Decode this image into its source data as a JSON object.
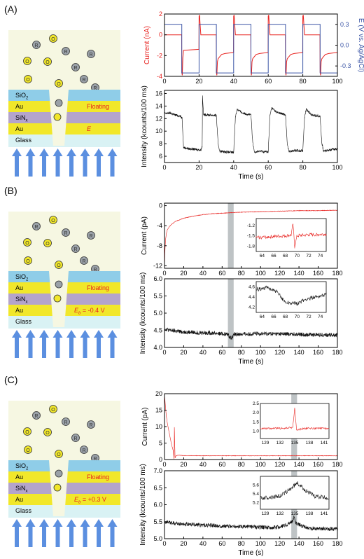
{
  "panels": [
    {
      "label": "(A)",
      "schematic": {
        "layers": [
          "SiO2",
          "Au",
          "SiNx",
          "Au",
          "Glass"
        ],
        "top_electrode_label": "Floating",
        "bottom_electrode_label": "E",
        "molecule_labels": [
          "O",
          "R"
        ]
      }
    },
    {
      "label": "(B)",
      "schematic": {
        "layers": [
          "SiO2",
          "Au",
          "SiNx",
          "Au",
          "Glass"
        ],
        "top_electrode_label": "Floating",
        "bottom_electrode_label": "Eb = -0.4 V",
        "molecule_labels": [
          "O",
          "R"
        ]
      }
    },
    {
      "label": "(C)",
      "schematic": {
        "layers": [
          "SiO2",
          "Au",
          "SiNx",
          "Au",
          "Glass"
        ],
        "top_electrode_label": "Floating",
        "bottom_electrode_label": "Eb = +0.3 V",
        "molecule_labels": [
          "O",
          "R"
        ]
      }
    }
  ],
  "chart_data": [
    {
      "panel": "A",
      "type": "line",
      "xlim": [
        0,
        100
      ],
      "ylim": [
        -4,
        2
      ],
      "xticks": [
        0,
        20,
        40,
        60,
        80,
        100
      ],
      "yticks": [
        -4,
        -2,
        0,
        2
      ],
      "xlabel": "",
      "ylabel": "Current (nA)",
      "y2label": "E (V vs. Ag/AgCl)",
      "y2lim": [
        -0.45,
        0.45
      ],
      "y2ticks": [
        -0.3,
        0.0,
        0.3
      ],
      "series": [
        {
          "name": "Current",
          "color": "#e8221f",
          "axis": "left",
          "x": [
            0,
            9.9,
            10,
            10.3,
            10.6,
            11,
            19.9,
            20,
            20.3,
            20.6,
            21,
            29.9,
            30,
            30.3,
            30.6,
            31,
            32,
            33,
            35,
            39.9,
            40,
            40.3,
            40.6,
            41,
            49.9,
            50,
            50.3,
            50.6,
            51,
            52,
            53,
            55,
            59.9,
            60,
            60.3,
            60.6,
            61,
            69.9,
            70,
            70.3,
            70.6,
            71,
            72,
            73,
            75,
            79.9,
            80,
            80.3,
            80.6,
            81,
            89.9,
            90,
            90.3,
            90.6,
            91,
            92,
            93,
            95,
            99.9
          ],
          "y": [
            0,
            0,
            -3.6,
            -3.9,
            -2.2,
            -1.5,
            -1.4,
            1.8,
            1.9,
            1.0,
            0,
            0,
            -3.6,
            -3.9,
            -2.6,
            -2.3,
            -2.1,
            -1.9,
            -1.8,
            -1.7,
            1.8,
            1.9,
            1.0,
            0,
            0,
            -3.6,
            -3.9,
            -2.6,
            -2.3,
            -2.1,
            -1.9,
            -1.8,
            -1.7,
            1.8,
            1.9,
            1.0,
            0,
            0,
            -3.6,
            -3.9,
            -2.6,
            -2.3,
            -2.1,
            -1.9,
            -1.8,
            -1.7,
            1.8,
            1.9,
            1.0,
            0,
            0,
            -3.6,
            -3.9,
            -2.6,
            -2.3,
            -2.1,
            -1.9,
            -1.8,
            -1.7
          ]
        },
        {
          "name": "E",
          "color": "#3b55a6",
          "axis": "right",
          "x": [
            0,
            10,
            10,
            20,
            20,
            30,
            30,
            40,
            40,
            50,
            50,
            60,
            60,
            70,
            70,
            80,
            80,
            90,
            90,
            100
          ],
          "y": [
            0.3,
            0.3,
            -0.4,
            -0.4,
            0.3,
            0.3,
            -0.4,
            -0.4,
            0.3,
            0.3,
            -0.4,
            -0.4,
            0.3,
            0.3,
            -0.4,
            -0.4,
            0.3,
            0.3,
            -0.4,
            -0.4
          ]
        }
      ]
    },
    {
      "panel": "A",
      "type": "line",
      "xlim": [
        0,
        100
      ],
      "ylim": [
        5,
        16.5
      ],
      "xticks": [
        0,
        20,
        40,
        60,
        80,
        100
      ],
      "yticks": [
        6,
        8,
        10,
        12,
        14,
        16
      ],
      "xlabel": "Time (s)",
      "ylabel": "Intensity (kcounts/100 ms)",
      "series": [
        {
          "color": "#111111",
          "noise": 0.2,
          "x": [
            0,
            3,
            6,
            9,
            10.2,
            11,
            14,
            18,
            21,
            21.8,
            22,
            22.6,
            25,
            30,
            31,
            32,
            35,
            40,
            41,
            42,
            45,
            50,
            51,
            52,
            55,
            60,
            61,
            62,
            65,
            70,
            71,
            72,
            75,
            80,
            81,
            82,
            85,
            90,
            91,
            92,
            95,
            100
          ],
          "y": [
            12.8,
            12.9,
            12.6,
            12.4,
            12.1,
            7.4,
            7.2,
            7.1,
            7.0,
            7.6,
            15.6,
            12.6,
            12.6,
            12.5,
            8.0,
            6.8,
            6.7,
            6.6,
            12.2,
            13.5,
            12.9,
            12.6,
            8.2,
            6.7,
            6.8,
            6.7,
            12.5,
            13.7,
            13.0,
            12.6,
            7.9,
            6.8,
            6.9,
            6.9,
            12.2,
            13.5,
            12.6,
            12.4,
            8.1,
            6.8,
            7.0,
            7.2
          ]
        }
      ]
    },
    {
      "panel": "B",
      "type": "line",
      "xlim": [
        0,
        180
      ],
      "ylim": [
        -12.5,
        0.5
      ],
      "xticks": [
        0,
        20,
        40,
        60,
        80,
        100,
        120,
        140,
        160,
        180
      ],
      "yticks": [
        -12,
        -8,
        -4,
        0
      ],
      "xlabel": "",
      "ylabel": "Current (pA)",
      "highlight": [
        66,
        72
      ],
      "series": [
        {
          "color": "#e8221f",
          "noise": 0.05,
          "x": [
            0,
            0.5,
            1,
            2,
            3,
            5,
            8,
            12,
            20,
            30,
            40,
            50,
            60,
            80,
            100,
            120,
            140,
            160,
            180
          ],
          "y": [
            -12.3,
            -9.0,
            -7.0,
            -5.5,
            -4.8,
            -4.2,
            -3.6,
            -3.1,
            -2.5,
            -2.1,
            -1.8,
            -1.6,
            -1.5,
            -1.3,
            -1.2,
            -1.1,
            -1.0,
            -1.0,
            -0.9
          ]
        }
      ],
      "inset": {
        "xlim": [
          63,
          75
        ],
        "ylim": [
          -1.95,
          -1.0
        ],
        "xticks": [
          64,
          66,
          68,
          70,
          72,
          74
        ],
        "yticks": [
          -1.8,
          -1.5,
          -1.2
        ],
        "color": "#e8221f",
        "noise": 0.05,
        "x": [
          63,
          66,
          68,
          69,
          69.3,
          69.6,
          70,
          72,
          75
        ],
        "y": [
          -1.55,
          -1.52,
          -1.5,
          -1.48,
          -1.15,
          -1.82,
          -1.5,
          -1.47,
          -1.45
        ]
      }
    },
    {
      "panel": "B",
      "type": "line",
      "xlim": [
        0,
        180
      ],
      "ylim": [
        4.0,
        6.0
      ],
      "xticks": [
        0,
        20,
        40,
        60,
        80,
        100,
        120,
        140,
        160,
        180
      ],
      "yticks": [
        4.0,
        4.5,
        5.0,
        5.5,
        6.0
      ],
      "xlabel": "Time (s)",
      "ylabel": "Intensity (kcounts/100 ms)",
      "highlight": [
        66,
        72
      ],
      "series": [
        {
          "color": "#111111",
          "noise": 0.06,
          "x": [
            0,
            5,
            20,
            50,
            66,
            68,
            70,
            72,
            100,
            140,
            180
          ],
          "y": [
            4.55,
            4.5,
            4.45,
            4.42,
            4.38,
            4.3,
            4.28,
            4.38,
            4.4,
            4.38,
            4.36
          ]
        }
      ],
      "inset": {
        "xlim": [
          63,
          75
        ],
        "ylim": [
          4.1,
          4.7
        ],
        "xticks": [
          64,
          66,
          68,
          70,
          72,
          74
        ],
        "yticks": [
          4.2,
          4.4,
          4.6
        ],
        "color": "#111111",
        "noise": 0.04,
        "x": [
          63,
          65,
          66.5,
          68,
          70,
          71.5,
          73,
          75
        ],
        "y": [
          4.55,
          4.58,
          4.5,
          4.3,
          4.27,
          4.35,
          4.4,
          4.45
        ]
      }
    },
    {
      "panel": "C",
      "type": "line",
      "xlim": [
        0,
        180
      ],
      "ylim": [
        0,
        20
      ],
      "xticks": [
        0,
        20,
        40,
        60,
        80,
        100,
        120,
        140,
        160,
        180
      ],
      "yticks": [
        0,
        5,
        10,
        15,
        20
      ],
      "xlabel": "",
      "ylabel": "Current (pA)",
      "highlight": [
        132,
        138
      ],
      "series": [
        {
          "color": "#e8221f",
          "noise": 0.06,
          "x": [
            0,
            0.5,
            1,
            2,
            3,
            4,
            5,
            6,
            7,
            8,
            9,
            9.5,
            10,
            10.3,
            11,
            12,
            15,
            20,
            40,
            80,
            120,
            180
          ],
          "y": [
            19.5,
            18,
            16,
            13,
            11,
            9.5,
            8,
            6.5,
            5,
            3.8,
            2.8,
            1.5,
            0.2,
            9.8,
            0.5,
            1.2,
            1.3,
            1.2,
            1.15,
            1.15,
            1.15,
            1.15
          ]
        }
      ],
      "inset": {
        "xlim": [
          128,
          142
        ],
        "ylim": [
          0.6,
          2.5
        ],
        "xticks": [
          129,
          132,
          135,
          138,
          141
        ],
        "yticks": [
          1.0,
          1.5,
          2.0,
          2.5
        ],
        "color": "#e8221f",
        "noise": 0.05,
        "x": [
          128,
          133,
          134.6,
          135,
          135.4,
          137,
          142
        ],
        "y": [
          1.15,
          1.15,
          1.2,
          2.25,
          1.05,
          1.15,
          1.15
        ]
      }
    },
    {
      "panel": "C",
      "type": "line",
      "xlim": [
        0,
        180
      ],
      "ylim": [
        5.0,
        7.0
      ],
      "xticks": [
        0,
        20,
        40,
        60,
        80,
        100,
        120,
        140,
        160,
        180
      ],
      "yticks": [
        5.0,
        5.5,
        6.0,
        6.5,
        7.0
      ],
      "xlabel": "Time (s)",
      "ylabel": "Intensity (kcounts/100 ms)",
      "highlight": [
        132,
        138
      ],
      "series": [
        {
          "color": "#111111",
          "noise": 0.06,
          "x": [
            0,
            10,
            40,
            80,
            120,
            133,
            135,
            137,
            150,
            180
          ],
          "y": [
            5.5,
            5.45,
            5.4,
            5.35,
            5.33,
            5.5,
            5.65,
            5.45,
            5.3,
            5.28
          ]
        }
      ],
      "inset": {
        "xlim": [
          128,
          142
        ],
        "ylim": [
          5.05,
          5.8
        ],
        "xticks": [
          129,
          132,
          135,
          138,
          141
        ],
        "yticks": [
          5.2,
          5.4,
          5.6
        ],
        "color": "#111111",
        "noise": 0.05,
        "x": [
          128,
          132,
          134,
          135.5,
          137,
          139,
          142
        ],
        "y": [
          5.3,
          5.35,
          5.5,
          5.65,
          5.5,
          5.35,
          5.3
        ]
      }
    }
  ]
}
